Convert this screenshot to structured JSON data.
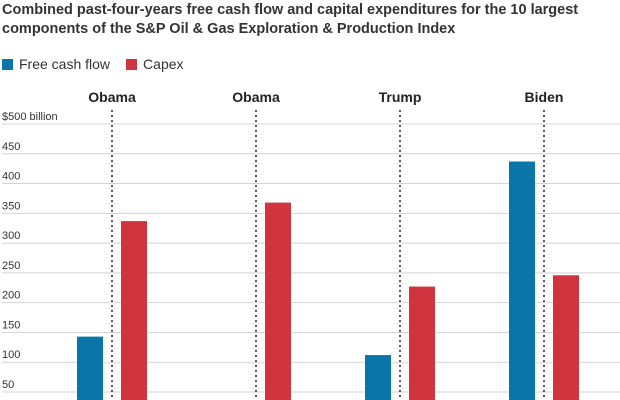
{
  "title": "Combined past-four-years free cash flow and capital expenditures for the 10 largest components of the S&P Oil & Gas Exploration & Production Index",
  "legend": [
    {
      "label": "Free cash flow",
      "color": "#0a76a8"
    },
    {
      "label": "Capex",
      "color": "#d0343e"
    }
  ],
  "chart_data": {
    "type": "bar",
    "title": "Combined past-four-years free cash flow and capital expenditures for the 10 largest components of the S&P Oil & Gas Exploration & Production Index",
    "xlabel": "",
    "ylabel": "$ billion",
    "unit_label": "$500 billion",
    "y_ticks": [
      50,
      100,
      150,
      200,
      250,
      300,
      350,
      400,
      450,
      500
    ],
    "ylim": [
      35,
      500
    ],
    "grid": true,
    "legend_position": "top-left",
    "categories": [
      "Obama",
      "Obama",
      "Trump",
      "Biden"
    ],
    "series": [
      {
        "name": "Free cash flow",
        "color": "#0a76a8",
        "values": [
          143,
          null,
          112,
          437
        ]
      },
      {
        "name": "Capex",
        "color": "#d0343e",
        "values": [
          337,
          368,
          227,
          246
        ]
      }
    ]
  }
}
